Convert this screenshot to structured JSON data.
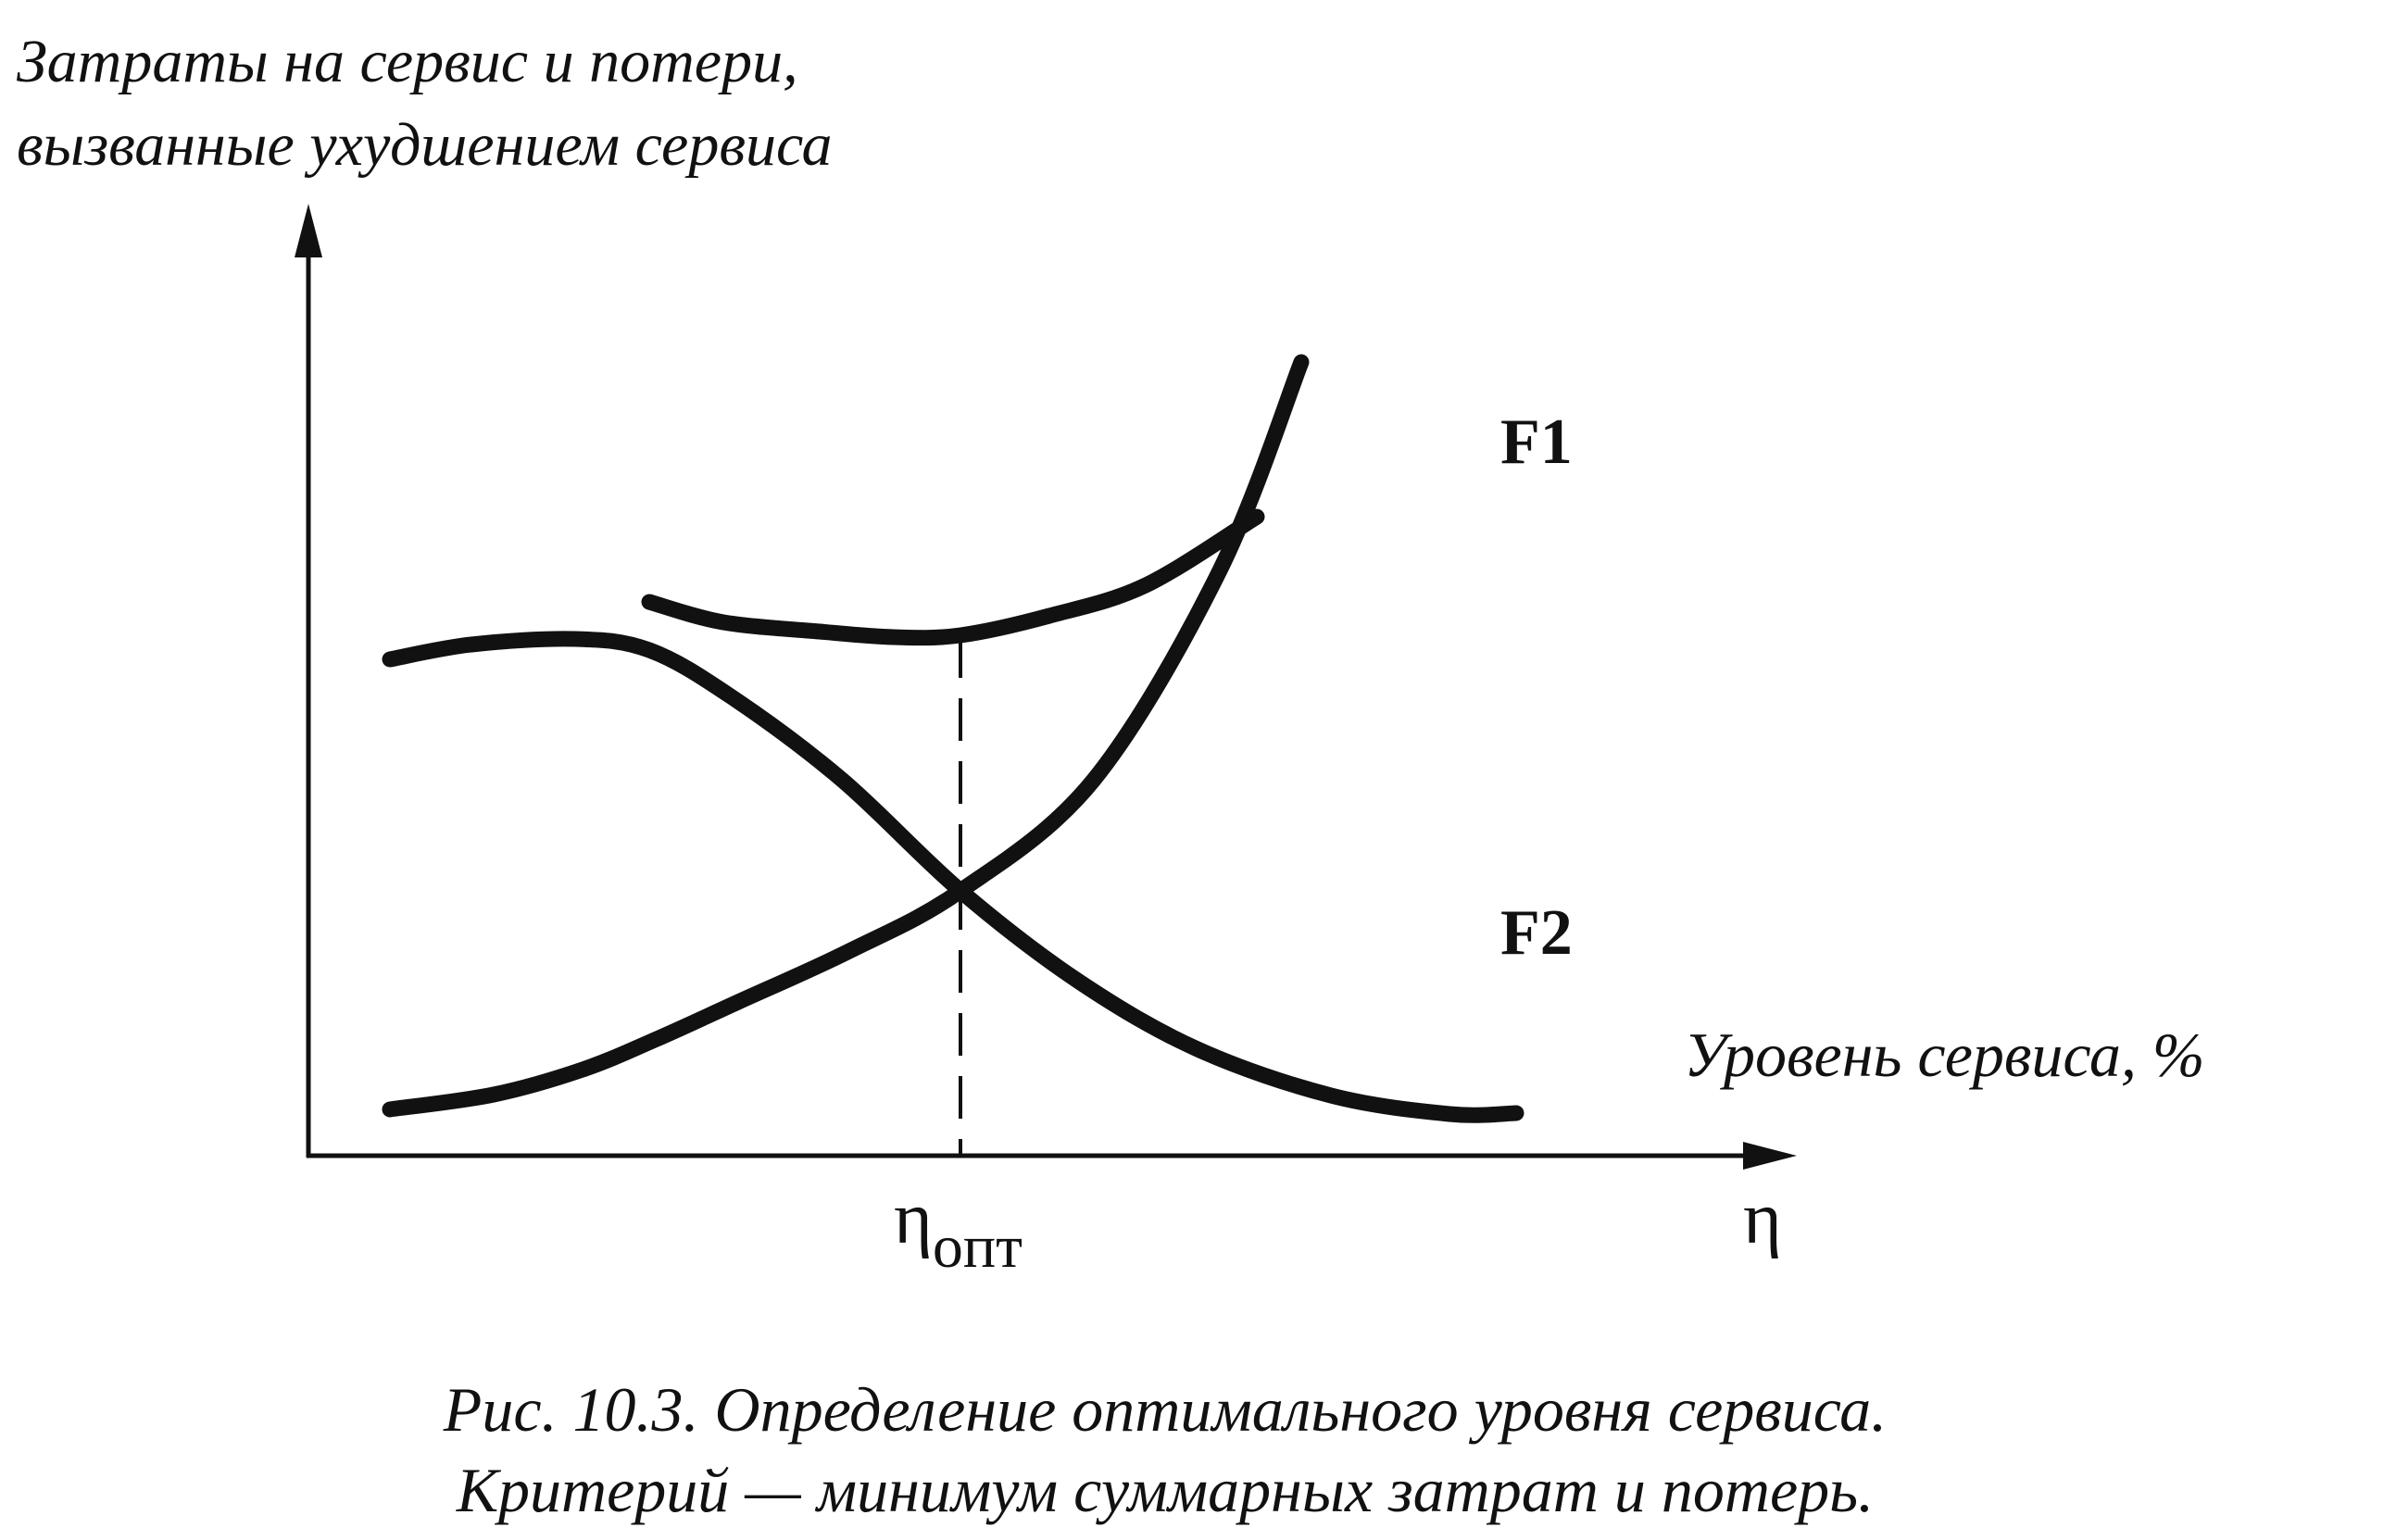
{
  "chart_data": {
    "type": "line",
    "ylabel_line1": "Затраты на сервис и потери,",
    "ylabel_line2": "вызванные ухудшением сервиса",
    "xlabel": "Уровень сервиса, %",
    "x_axis_symbol": "η",
    "optimum_label_symbol": "η",
    "optimum_label_subscript": "опт",
    "caption_line1": "Рис. 10.3. Определение оптимального уровня сервиса.",
    "caption_line2": "Критерий — минимум суммарных затрат и потерь.",
    "xlim": [
      0,
      1000
    ],
    "ylim": [
      0,
      1000
    ],
    "optimum_x": 440,
    "grid": false,
    "series": [
      {
        "name": "F1",
        "x": [
          230,
          280,
          345,
          395,
          440,
          500,
          565,
          640
        ],
        "y": [
          598,
          576,
          566,
          560,
          562,
          583,
          616,
          690
        ]
      },
      {
        "name": "F2",
        "x": [
          55,
          125,
          185,
          235,
          290,
          365,
          440,
          530,
          615,
          670
        ],
        "y": [
          50,
          66,
          93,
          126,
          166,
          221,
          286,
          406,
          632,
          857
        ]
      },
      {
        "name": "",
        "x": [
          55,
          110,
          180,
          230,
          285,
          360,
          440,
          520,
          600,
          690,
          770,
          815
        ],
        "y": [
          536,
          552,
          558,
          546,
          496,
          406,
          286,
          188,
          115,
          65,
          45,
          46
        ]
      }
    ],
    "series_label_F1": "F1",
    "series_label_F2": "F2",
    "line_color": "#111111"
  }
}
